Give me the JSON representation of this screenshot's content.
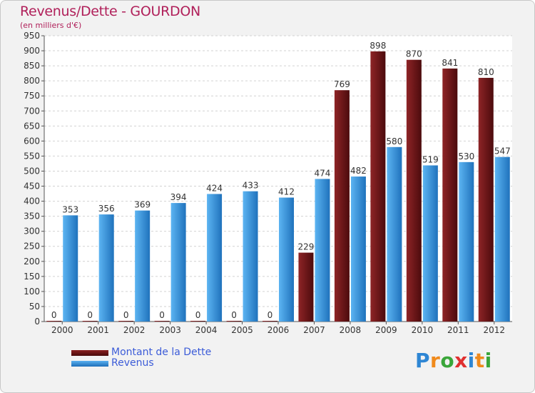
{
  "chart_data": {
    "type": "bar",
    "title": "Revenus/Dette - GOURDON",
    "subtitle": "(en milliers d'€)",
    "categories": [
      "2000",
      "2001",
      "2002",
      "2003",
      "2004",
      "2005",
      "2006",
      "2007",
      "2008",
      "2009",
      "2010",
      "2011",
      "2012"
    ],
    "series": [
      {
        "name": "Montant de la Dette",
        "color": "#7a1a1e",
        "values": [
          0,
          0,
          0,
          0,
          0,
          0,
          0,
          229,
          769,
          898,
          870,
          841,
          810
        ]
      },
      {
        "name": "Revenus",
        "color": "#3a9ae6",
        "values": [
          353,
          356,
          369,
          394,
          424,
          433,
          412,
          474,
          482,
          580,
          519,
          530,
          547
        ]
      }
    ],
    "ylim": [
      0,
      950
    ],
    "yticks": [
      0,
      50,
      100,
      150,
      200,
      250,
      300,
      350,
      400,
      450,
      500,
      550,
      600,
      650,
      700,
      750,
      800,
      850,
      900,
      950
    ],
    "grid": true,
    "legend": "bottom-left"
  },
  "logo": {
    "text": "Proxiti",
    "letters": [
      "P",
      "r",
      "o",
      "x",
      "i",
      "t",
      "i"
    ],
    "colors": [
      "#2e86d4",
      "#f08a1c",
      "#3aa63a",
      "#e03030",
      "#2e86d4",
      "#f08a1c",
      "#3aa63a"
    ]
  }
}
